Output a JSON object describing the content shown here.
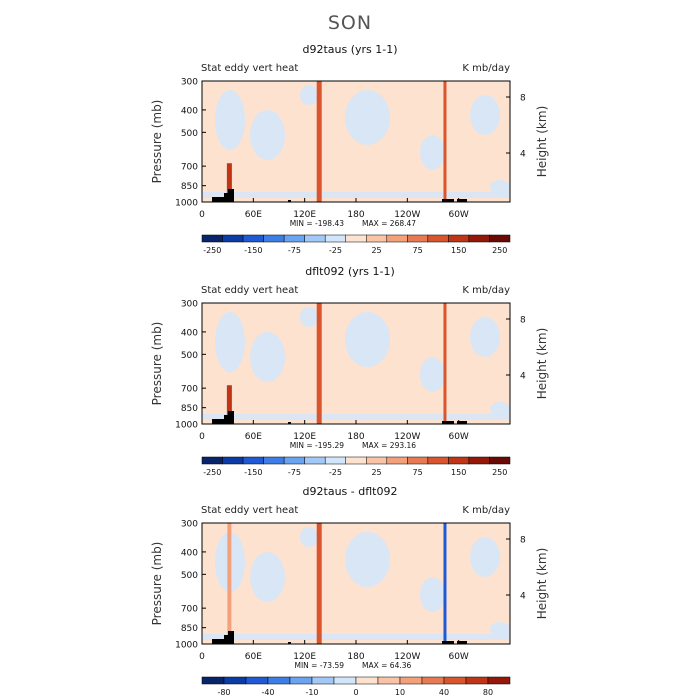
{
  "page_title": "SON",
  "chart_data": [
    {
      "type": "heatmap",
      "title": "d92taus (yrs 1-1)",
      "left_label": "Stat eddy vert heat",
      "right_label": "K mb/day",
      "ylabel": "Pressure (mb)",
      "y2label": "Height (km)",
      "y_ticks": [
        "300",
        "400",
        "500",
        "700",
        "850",
        "1000"
      ],
      "y_tick_values": [
        300,
        400,
        500,
        700,
        850,
        1000
      ],
      "y2_ticks": [
        "8",
        "4"
      ],
      "x_ticks": [
        "0",
        "60E",
        "120E",
        "180",
        "120W",
        "60W"
      ],
      "x_tick_values": [
        0,
        60,
        120,
        180,
        240,
        300
      ],
      "xlim": [
        0,
        360
      ],
      "ylim": [
        1000,
        300
      ],
      "min_label": "MIN = -198.43",
      "max_label": "MAX = 268.47",
      "colorbar_labels": [
        "-250",
        "-150",
        "-75",
        "-25",
        "25",
        "75",
        "150",
        "250"
      ],
      "colorbar_colors": [
        "#08246b",
        "#0b3ca6",
        "#1f59d4",
        "#3d7ee6",
        "#6aa3f2",
        "#a2c8f8",
        "#d2e6fb",
        "#fde2d0",
        "#f9c3a6",
        "#f3a07b",
        "#e77a52",
        "#d9552e",
        "#bf3516",
        "#95190a",
        "#6b0a04"
      ],
      "background": "#fde2d0",
      "features": [
        {
          "name": "red-band-130E",
          "lon": 137,
          "p_top": 300,
          "p_bot": 1000,
          "width": 5,
          "color": "#d9552e"
        },
        {
          "name": "red-band-70W",
          "lon": 284,
          "p_top": 300,
          "p_bot": 1000,
          "width": 3,
          "color": "#d9552e"
        },
        {
          "name": "plume-30E",
          "lon": 32,
          "p_top": 680,
          "p_bot": 1000,
          "width": 5,
          "color": "#bf3516"
        }
      ]
    },
    {
      "type": "heatmap",
      "title": "dflt092 (yrs 1-1)",
      "left_label": "Stat eddy vert heat",
      "right_label": "K mb/day",
      "ylabel": "Pressure (mb)",
      "y2label": "Height (km)",
      "y_ticks": [
        "300",
        "400",
        "500",
        "700",
        "850",
        "1000"
      ],
      "y_tick_values": [
        300,
        400,
        500,
        700,
        850,
        1000
      ],
      "y2_ticks": [
        "8",
        "4"
      ],
      "x_ticks": [
        "0",
        "60E",
        "120E",
        "180",
        "120W",
        "60W"
      ],
      "x_tick_values": [
        0,
        60,
        120,
        180,
        240,
        300
      ],
      "xlim": [
        0,
        360
      ],
      "ylim": [
        1000,
        300
      ],
      "min_label": "MIN = -195.29",
      "max_label": "MAX = 293.16",
      "colorbar_labels": [
        "-250",
        "-150",
        "-75",
        "-25",
        "25",
        "75",
        "150",
        "250"
      ],
      "colorbar_colors": [
        "#08246b",
        "#0b3ca6",
        "#1f59d4",
        "#3d7ee6",
        "#6aa3f2",
        "#a2c8f8",
        "#d2e6fb",
        "#fde2d0",
        "#f9c3a6",
        "#f3a07b",
        "#e77a52",
        "#d9552e",
        "#bf3516",
        "#95190a",
        "#6b0a04"
      ],
      "background": "#fde2d0",
      "features": [
        {
          "name": "red-band-130E",
          "lon": 137,
          "p_top": 300,
          "p_bot": 1000,
          "width": 5,
          "color": "#d9552e"
        },
        {
          "name": "red-band-70W",
          "lon": 284,
          "p_top": 300,
          "p_bot": 1000,
          "width": 3,
          "color": "#d9552e"
        },
        {
          "name": "plume-30E",
          "lon": 32,
          "p_top": 680,
          "p_bot": 1000,
          "width": 5,
          "color": "#bf3516"
        }
      ]
    },
    {
      "type": "heatmap",
      "title": "d92taus - dflt092",
      "left_label": "Stat eddy vert heat",
      "right_label": "K mb/day",
      "ylabel": "Pressure (mb)",
      "y2label": "Height (km)",
      "y_ticks": [
        "300",
        "400",
        "500",
        "700",
        "850",
        "1000"
      ],
      "y_tick_values": [
        300,
        400,
        500,
        700,
        850,
        1000
      ],
      "y2_ticks": [
        "8",
        "4"
      ],
      "x_ticks": [
        "0",
        "60E",
        "120E",
        "180",
        "120W",
        "60W"
      ],
      "x_tick_values": [
        0,
        60,
        120,
        180,
        240,
        300
      ],
      "xlim": [
        0,
        360
      ],
      "ylim": [
        1000,
        300
      ],
      "min_label": "MIN = -73.59",
      "max_label": "MAX =   64.36",
      "colorbar_labels": [
        "-80",
        "-40",
        "-10",
        "0",
        "10",
        "40",
        "80"
      ],
      "colorbar_colors": [
        "#08246b",
        "#0b3ca6",
        "#1f59d4",
        "#3d7ee6",
        "#6aa3f2",
        "#a2c8f8",
        "#d2e6fb",
        "#fde2d0",
        "#f9c3a6",
        "#f3a07b",
        "#e77a52",
        "#d9552e",
        "#bf3516",
        "#95190a"
      ],
      "background": "#fde2d0",
      "features": [
        {
          "name": "red-band-130E",
          "lon": 137,
          "p_top": 300,
          "p_bot": 1000,
          "width": 5,
          "color": "#d9552e"
        },
        {
          "name": "red-band-70W",
          "lon": 284,
          "p_top": 300,
          "p_bot": 1000,
          "width": 3,
          "color": "#1f59d4"
        },
        {
          "name": "plume-30E",
          "lon": 32,
          "p_top": 300,
          "p_bot": 1000,
          "width": 4,
          "color": "#f3a07b"
        }
      ]
    }
  ]
}
